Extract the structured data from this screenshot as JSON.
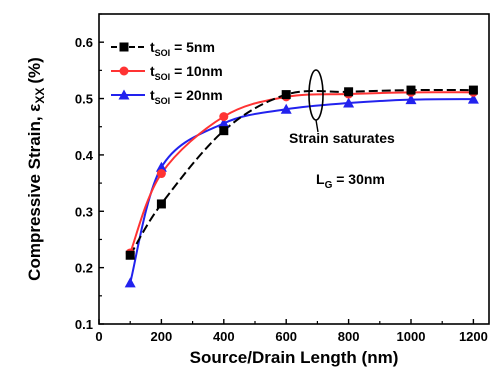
{
  "chart_data": {
    "type": "line",
    "xlabel": "Source/Drain Length (nm)",
    "ylabel_main": "Compressive Strain, ε",
    "ylabel_sub": "XX",
    "ylabel_unit": "(%)",
    "xlim": [
      0,
      1250
    ],
    "ylim": [
      0.1,
      0.65
    ],
    "xticks": [
      "0",
      "200",
      "400",
      "600",
      "800",
      "1000",
      "1200"
    ],
    "yticks": [
      "0.1",
      "0.2",
      "0.3",
      "0.4",
      "0.5",
      "0.6"
    ],
    "x": [
      100,
      200,
      400,
      600,
      800,
      1000,
      1200
    ],
    "series": [
      {
        "name_prefix": "t",
        "name_sub": "SOI",
        "name_suffix": " = 5nm",
        "color": "#000000",
        "marker": "square",
        "dashed": true,
        "values": [
          0.222,
          0.313,
          0.443,
          0.507,
          0.512,
          0.515,
          0.515
        ]
      },
      {
        "name_prefix": "t",
        "name_sub": "SOI",
        "name_suffix": " = 10nm",
        "color": "#ff3333",
        "marker": "circle",
        "dashed": false,
        "values": [
          0.226,
          0.367,
          0.468,
          0.503,
          0.508,
          0.511,
          0.511
        ]
      },
      {
        "name_prefix": "t",
        "name_sub": "SOI",
        "name_suffix": " = 20nm",
        "color": "#2222ee",
        "marker": "triangle",
        "dashed": false,
        "values": [
          0.173,
          0.378,
          0.456,
          0.481,
          0.492,
          0.498,
          0.499
        ]
      }
    ],
    "annotations": {
      "saturate": "Strain saturates",
      "lg_main": "L",
      "lg_sub": "G",
      "lg_value": " = 30nm"
    },
    "legend_position": "top-left",
    "grid": false
  }
}
